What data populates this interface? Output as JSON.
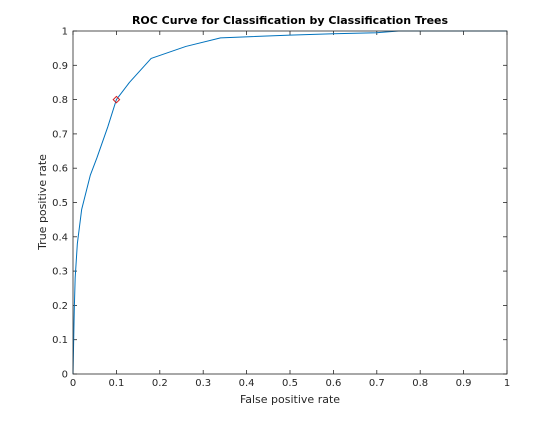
{
  "chart_data": {
    "type": "line",
    "title": "ROC Curve for Classification by Classification Trees",
    "xlabel": "False positive rate",
    "ylabel": "True positive rate",
    "xlim": [
      0,
      1
    ],
    "ylim": [
      0,
      1
    ],
    "xticks": [
      "0",
      "0.1",
      "0.2",
      "0.3",
      "0.4",
      "0.5",
      "0.6",
      "0.7",
      "0.8",
      "0.9",
      "1"
    ],
    "yticks": [
      "0",
      "0.1",
      "0.2",
      "0.3",
      "0.4",
      "0.5",
      "0.6",
      "0.7",
      "0.8",
      "0.9",
      "1"
    ],
    "grid": false,
    "series": [
      {
        "color": "#0072bd",
        "x": [
          0,
          0.003,
          0.005,
          0.01,
          0.02,
          0.04,
          0.055,
          0.08,
          0.1,
          0.13,
          0.18,
          0.26,
          0.34,
          0.5,
          0.6,
          0.7,
          0.75,
          1
        ],
        "y": [
          0,
          0.19,
          0.28,
          0.38,
          0.48,
          0.58,
          0.63,
          0.72,
          0.8,
          0.85,
          0.92,
          0.955,
          0.98,
          0.988,
          0.992,
          0.995,
          1,
          1
        ]
      }
    ],
    "marker": {
      "x": 0.1,
      "y": 0.8,
      "color": "#d62020",
      "shape": "diamond"
    }
  }
}
